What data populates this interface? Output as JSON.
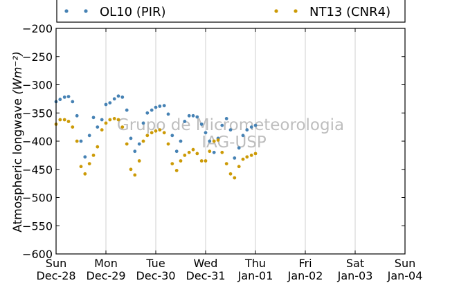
{
  "chart_data": {
    "type": "scatter",
    "title": "",
    "ylabel": "Atmospheric longwave",
    "ylabel_unit": "(Wm⁻²)",
    "ylim": [
      -600,
      -200
    ],
    "yticks": [
      -200,
      -250,
      -300,
      -350,
      -400,
      -450,
      -500,
      -550,
      -600
    ],
    "ytick_labels": [
      "−200",
      "−250",
      "−300",
      "−350",
      "−400",
      "−450",
      "−500",
      "−550",
      "−600"
    ],
    "xlim": [
      0,
      7
    ],
    "x_unit": "days",
    "xticks": [
      {
        "x": 0,
        "line1": "Sun",
        "line2": "Dec-28"
      },
      {
        "x": 1,
        "line1": "Mon",
        "line2": "Dec-29"
      },
      {
        "x": 2,
        "line1": "Tue",
        "line2": "Dec-30"
      },
      {
        "x": 3,
        "line1": "Wed",
        "line2": "Dec-31"
      },
      {
        "x": 4,
        "line1": "Thu",
        "line2": "Jan-01"
      },
      {
        "x": 5,
        "line1": "Fri",
        "line2": "Jan-02"
      },
      {
        "x": 6,
        "line1": "Sat",
        "line2": "Jan-03"
      },
      {
        "x": 7,
        "line1": "Sun",
        "line2": "Jan-04"
      }
    ],
    "grid": "vertical",
    "legend": {
      "placement": "top",
      "ncol": 2
    },
    "watermark": [
      "Grupo de Micrometeorologia",
      "IAG-USP"
    ],
    "series": [
      {
        "name": "OL10 (PIR)",
        "color": "#4682b4",
        "x": [
          0.0,
          0.08,
          0.17,
          0.25,
          0.33,
          0.42,
          0.5,
          0.58,
          0.67,
          0.75,
          0.83,
          0.92,
          1.0,
          1.08,
          1.17,
          1.25,
          1.33,
          1.42,
          1.5,
          1.58,
          1.67,
          1.75,
          1.83,
          1.92,
          2.0,
          2.08,
          2.17,
          2.25,
          2.33,
          2.42,
          2.5,
          2.58,
          2.67,
          2.75,
          2.83,
          2.92,
          3.0,
          3.08,
          3.17,
          3.25,
          3.33,
          3.42,
          3.5,
          3.58,
          3.67,
          3.75,
          3.83,
          3.92,
          4.0
        ],
        "y": [
          -330,
          -326,
          -322,
          -321,
          -330,
          -355,
          -400,
          -428,
          -390,
          -358,
          -375,
          -362,
          -335,
          -332,
          -325,
          -320,
          -322,
          -345,
          -395,
          -418,
          -405,
          -368,
          -350,
          -345,
          -340,
          -338,
          -337,
          -352,
          -390,
          -418,
          -400,
          -365,
          -355,
          -355,
          -357,
          -370,
          -385,
          -400,
          -420,
          -395,
          -372,
          -360,
          -380,
          -430,
          -412,
          -390,
          -380,
          -375,
          -372
        ]
      },
      {
        "name": "NT13 (CNR4)",
        "color": "#cc9a06",
        "x": [
          0.0,
          0.08,
          0.17,
          0.25,
          0.33,
          0.42,
          0.5,
          0.58,
          0.67,
          0.75,
          0.83,
          0.92,
          1.0,
          1.08,
          1.17,
          1.25,
          1.33,
          1.42,
          1.5,
          1.58,
          1.67,
          1.75,
          1.83,
          1.92,
          2.0,
          2.08,
          2.17,
          2.25,
          2.33,
          2.42,
          2.5,
          2.58,
          2.67,
          2.75,
          2.83,
          2.92,
          3.0,
          3.08,
          3.17,
          3.25,
          3.33,
          3.42,
          3.5,
          3.58,
          3.67,
          3.75,
          3.83,
          3.92,
          4.0
        ],
        "y": [
          -370,
          -362,
          -362,
          -365,
          -375,
          -400,
          -445,
          -458,
          -440,
          -425,
          -410,
          -380,
          -368,
          -362,
          -360,
          -362,
          -375,
          -405,
          -450,
          -460,
          -435,
          -400,
          -390,
          -385,
          -382,
          -380,
          -385,
          -405,
          -440,
          -452,
          -435,
          -425,
          -420,
          -415,
          -422,
          -435,
          -435,
          -418,
          -400,
          -398,
          -420,
          -440,
          -458,
          -465,
          -445,
          -432,
          -428,
          -425,
          -422
        ]
      }
    ]
  }
}
